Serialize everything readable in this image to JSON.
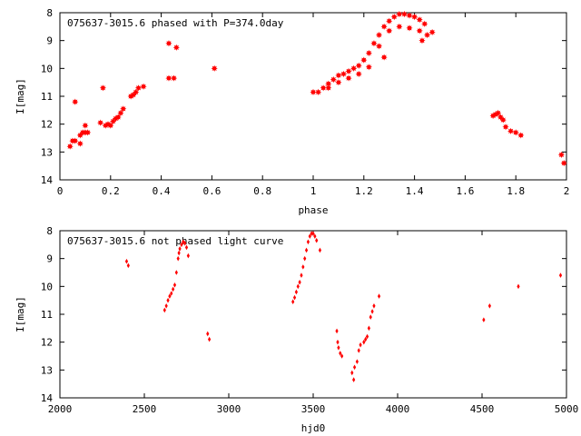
{
  "chart_data": [
    {
      "type": "scatter",
      "title": "075637-3015.6 phased with P=374.0day",
      "xlabel": "phase",
      "ylabel": "I[mag]",
      "xlim": [
        0,
        2
      ],
      "ylim": [
        8,
        14
      ],
      "y_inverted": true,
      "grid": false,
      "marker": "star",
      "color": "#ff0000",
      "xticks": [
        "0",
        "0.2",
        "0.4",
        "0.6",
        "0.8",
        "1",
        "1.2",
        "1.4",
        "1.6",
        "1.8",
        "2"
      ],
      "yticks": [
        "8",
        "9",
        "10",
        "11",
        "12",
        "13",
        "14"
      ],
      "points": [
        [
          0.04,
          12.8
        ],
        [
          0.05,
          12.6
        ],
        [
          0.06,
          12.6
        ],
        [
          0.06,
          11.2
        ],
        [
          0.08,
          12.7
        ],
        [
          0.08,
          12.4
        ],
        [
          0.09,
          12.3
        ],
        [
          0.1,
          12.3
        ],
        [
          0.1,
          12.05
        ],
        [
          0.11,
          12.3
        ],
        [
          0.16,
          11.95
        ],
        [
          0.17,
          10.7
        ],
        [
          0.18,
          12.05
        ],
        [
          0.19,
          12.0
        ],
        [
          0.2,
          12.05
        ],
        [
          0.21,
          11.9
        ],
        [
          0.22,
          11.8
        ],
        [
          0.23,
          11.75
        ],
        [
          0.24,
          11.6
        ],
        [
          0.25,
          11.45
        ],
        [
          0.28,
          11.0
        ],
        [
          0.29,
          10.95
        ],
        [
          0.3,
          10.85
        ],
        [
          0.31,
          10.7
        ],
        [
          0.33,
          10.65
        ],
        [
          0.43,
          9.1
        ],
        [
          0.43,
          10.35
        ],
        [
          0.45,
          10.35
        ],
        [
          0.46,
          9.25
        ],
        [
          0.61,
          10.0
        ],
        [
          1.0,
          10.85
        ],
        [
          1.02,
          10.85
        ],
        [
          1.04,
          10.7
        ],
        [
          1.06,
          10.55
        ],
        [
          1.08,
          10.4
        ],
        [
          1.1,
          10.25
        ],
        [
          1.12,
          10.2
        ],
        [
          1.14,
          10.1
        ],
        [
          1.16,
          10.0
        ],
        [
          1.18,
          9.9
        ],
        [
          1.2,
          9.7
        ],
        [
          1.22,
          9.45
        ],
        [
          1.24,
          9.1
        ],
        [
          1.26,
          8.8
        ],
        [
          1.28,
          8.5
        ],
        [
          1.3,
          8.3
        ],
        [
          1.32,
          8.15
        ],
        [
          1.34,
          8.05
        ],
        [
          1.36,
          8.05
        ],
        [
          1.38,
          8.1
        ],
        [
          1.4,
          8.15
        ],
        [
          1.42,
          8.25
        ],
        [
          1.44,
          8.4
        ],
        [
          1.06,
          10.7
        ],
        [
          1.1,
          10.5
        ],
        [
          1.14,
          10.35
        ],
        [
          1.18,
          10.2
        ],
        [
          1.22,
          9.95
        ],
        [
          1.26,
          9.2
        ],
        [
          1.3,
          8.65
        ],
        [
          1.34,
          8.5
        ],
        [
          1.38,
          8.55
        ],
        [
          1.42,
          8.65
        ],
        [
          1.45,
          8.8
        ],
        [
          1.28,
          9.6
        ],
        [
          1.43,
          9.0
        ],
        [
          1.47,
          8.7
        ],
        [
          1.71,
          11.7
        ],
        [
          1.72,
          11.65
        ],
        [
          1.73,
          11.6
        ],
        [
          1.74,
          11.75
        ],
        [
          1.75,
          11.85
        ],
        [
          1.76,
          12.1
        ],
        [
          1.78,
          12.25
        ],
        [
          1.8,
          12.3
        ],
        [
          1.82,
          12.4
        ],
        [
          1.98,
          13.1
        ],
        [
          1.99,
          13.4
        ]
      ]
    },
    {
      "type": "scatter",
      "title": "075637-3015.6 not phased light curve",
      "xlabel": "hjd0",
      "ylabel": "I[mag]",
      "xlim": [
        2000,
        5000
      ],
      "ylim": [
        8,
        14
      ],
      "y_inverted": true,
      "grid": false,
      "marker": "dot",
      "color": "#ff0000",
      "xticks": [
        "2000",
        "2500",
        "3000",
        "3500",
        "4000",
        "4500",
        "5000"
      ],
      "yticks": [
        "8",
        "9",
        "10",
        "11",
        "12",
        "13",
        "14"
      ],
      "points": [
        [
          2395,
          9.1
        ],
        [
          2405,
          9.25
        ],
        [
          2620,
          10.85
        ],
        [
          2630,
          10.7
        ],
        [
          2640,
          10.5
        ],
        [
          2650,
          10.35
        ],
        [
          2660,
          10.25
        ],
        [
          2670,
          10.1
        ],
        [
          2680,
          9.95
        ],
        [
          2690,
          9.5
        ],
        [
          2700,
          9.0
        ],
        [
          2705,
          8.8
        ],
        [
          2710,
          8.65
        ],
        [
          2720,
          8.5
        ],
        [
          2730,
          8.4
        ],
        [
          2740,
          8.45
        ],
        [
          2750,
          8.6
        ],
        [
          2760,
          8.9
        ],
        [
          2875,
          11.7
        ],
        [
          2885,
          11.9
        ],
        [
          3380,
          10.55
        ],
        [
          3390,
          10.4
        ],
        [
          3400,
          10.2
        ],
        [
          3410,
          10.0
        ],
        [
          3420,
          9.85
        ],
        [
          3430,
          9.6
        ],
        [
          3440,
          9.3
        ],
        [
          3450,
          9.0
        ],
        [
          3460,
          8.7
        ],
        [
          3470,
          8.4
        ],
        [
          3480,
          8.2
        ],
        [
          3490,
          8.1
        ],
        [
          3500,
          8.1
        ],
        [
          3510,
          8.2
        ],
        [
          3520,
          8.35
        ],
        [
          3540,
          8.7
        ],
        [
          3640,
          11.6
        ],
        [
          3645,
          12.0
        ],
        [
          3650,
          12.2
        ],
        [
          3660,
          12.4
        ],
        [
          3670,
          12.5
        ],
        [
          3730,
          13.1
        ],
        [
          3740,
          13.35
        ],
        [
          3745,
          12.9
        ],
        [
          3760,
          12.7
        ],
        [
          3770,
          12.3
        ],
        [
          3780,
          12.1
        ],
        [
          3800,
          12.0
        ],
        [
          3810,
          11.9
        ],
        [
          3820,
          11.8
        ],
        [
          3830,
          11.5
        ],
        [
          3840,
          11.1
        ],
        [
          3850,
          10.9
        ],
        [
          3860,
          10.7
        ],
        [
          3890,
          10.35
        ],
        [
          4510,
          11.2
        ],
        [
          4545,
          10.7
        ],
        [
          4715,
          10.0
        ],
        [
          4965,
          9.6
        ]
      ]
    }
  ]
}
